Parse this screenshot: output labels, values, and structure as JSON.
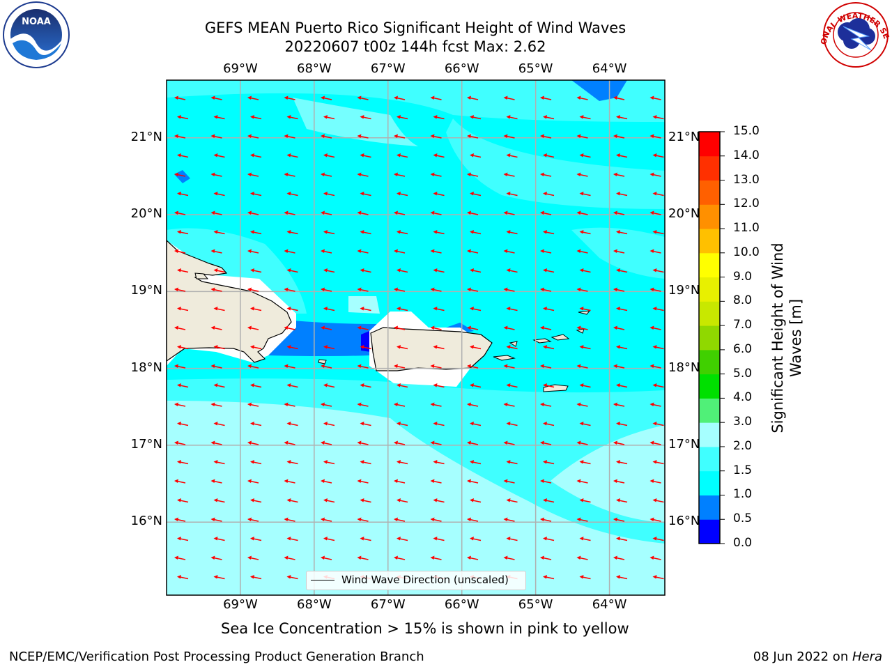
{
  "header": {
    "title_line1": "GEFS MEAN Puerto Rico Significant Height of Wind Waves",
    "title_line2": "20220607 t00z 144h fcst   Max: 2.62"
  },
  "logos": {
    "left": "NOAA",
    "left_ring_text": "NATIONAL OCEANIC AND ATMOSPHERIC ADMINISTRATION · U.S. DEPARTMENT OF COMMERCE",
    "right_ring_text": "NATIONAL WEATHER SERVICE"
  },
  "map": {
    "lon_labels": [
      "69°W",
      "68°W",
      "67°W",
      "66°W",
      "65°W",
      "64°W"
    ],
    "lon_values": [
      -69,
      -68,
      -67,
      -66,
      -65,
      -64
    ],
    "lat_labels": [
      "16°N",
      "17°N",
      "18°N",
      "19°N",
      "20°N",
      "21°N"
    ],
    "lat_values": [
      16,
      17,
      18,
      19,
      20,
      21
    ],
    "lon_range": [
      -70,
      -63.25
    ],
    "lat_range": [
      15.05,
      21.75
    ],
    "grid": true,
    "arrow_color": "#ff0000",
    "land_color": "#efebdc",
    "colors": {
      "ocean_mid": "#00ffff",
      "ocean_light": "#40ffff",
      "ocean_pale": "#a6ffff",
      "ocean_low": "#0080ff",
      "ocean_lowest": "#0000ff"
    },
    "legend_label": "Wind Wave Direction (unscaled)"
  },
  "colorbar": {
    "title": "Significant Height of Wind Waves [m]",
    "ticks": [
      "0.0",
      "0.5",
      "1.0",
      "1.5",
      "2.0",
      "3.0",
      "4.0",
      "5.0",
      "6.0",
      "7.0",
      "8.0",
      "9.0",
      "10.0",
      "11.0",
      "12.0",
      "13.0",
      "14.0",
      "15.0"
    ],
    "colors": [
      "#0000ff",
      "#0080ff",
      "#00ffff",
      "#40ffff",
      "#a6ffff",
      "#50f078",
      "#00e000",
      "#40d000",
      "#90d800",
      "#c8e800",
      "#e8f000",
      "#ffff00",
      "#ffc000",
      "#ff9000",
      "#ff6000",
      "#ff3000",
      "#ff0000"
    ]
  },
  "footer": {
    "sea_ice_note": "Sea Ice Concentration > 15% is shown in pink to yellow",
    "credit_left": "NCEP/EMC/Verification Post Processing Product Generation Branch",
    "credit_right_prefix": "08 Jun 2022 on ",
    "credit_right_host": "Hera"
  }
}
